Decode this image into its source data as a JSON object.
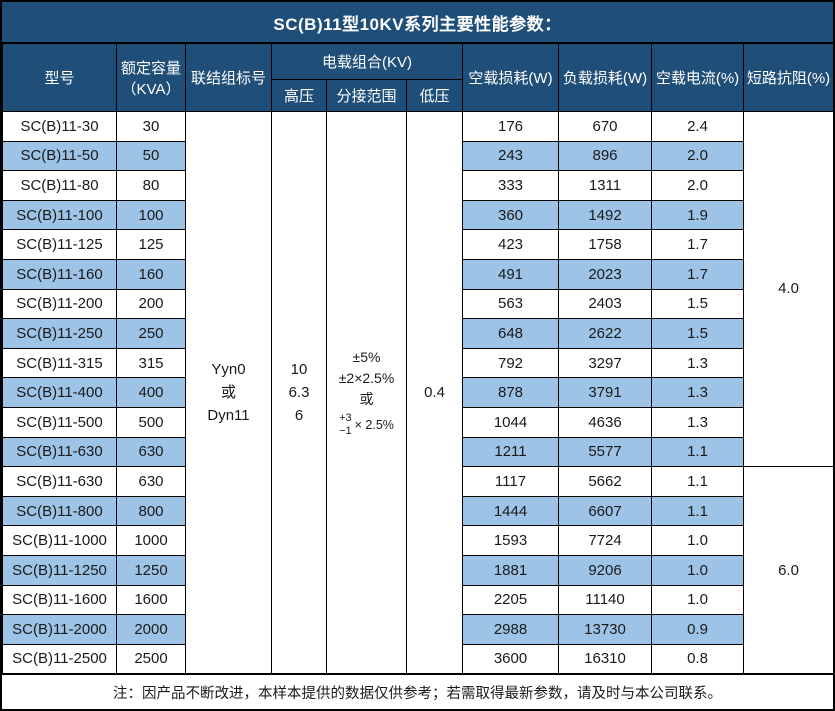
{
  "title": "SC(B)11型10KV系列主要性能参数：",
  "columns": {
    "model": "型号",
    "capacity_l1": "额定容量",
    "capacity_l2": "（KVA）",
    "connection": "联结组标号",
    "voltage_combo": "电载组合(KV)",
    "hv": "高压",
    "tap_range": "分接范围",
    "lv": "低压",
    "no_load_loss": "空载损耗(W)",
    "load_loss": "负载损耗(W)",
    "no_load_current": "空载电流(%)",
    "short_circuit_impedance": "短路抗阻(%)"
  },
  "shared": {
    "connection_l1": "Yyn0",
    "connection_l2": "或",
    "connection_l3": "Dyn11",
    "hv_l1": "10",
    "hv_l2": "6.3",
    "hv_l3": "6",
    "tap_l1": "±5%",
    "tap_l2": "±2×2.5%",
    "tap_l3": "或",
    "tap_frac_top": "+3",
    "tap_frac_bottom": "−1",
    "tap_frac_mult": "× 2.5%",
    "lv_value": "0.4",
    "impedance_group1": "4.0",
    "impedance_group2": "6.0"
  },
  "rows": [
    {
      "model": "SC(B)11-30",
      "capacity": "30",
      "no_load_loss": "176",
      "load_loss": "670",
      "no_load_current": "2.4"
    },
    {
      "model": "SC(B)11-50",
      "capacity": "50",
      "no_load_loss": "243",
      "load_loss": "896",
      "no_load_current": "2.0"
    },
    {
      "model": "SC(B)11-80",
      "capacity": "80",
      "no_load_loss": "333",
      "load_loss": "1311",
      "no_load_current": "2.0"
    },
    {
      "model": "SC(B)11-100",
      "capacity": "100",
      "no_load_loss": "360",
      "load_loss": "1492",
      "no_load_current": "1.9"
    },
    {
      "model": "SC(B)11-125",
      "capacity": "125",
      "no_load_loss": "423",
      "load_loss": "1758",
      "no_load_current": "1.7"
    },
    {
      "model": "SC(B)11-160",
      "capacity": "160",
      "no_load_loss": "491",
      "load_loss": "2023",
      "no_load_current": "1.7"
    },
    {
      "model": "SC(B)11-200",
      "capacity": "200",
      "no_load_loss": "563",
      "load_loss": "2403",
      "no_load_current": "1.5"
    },
    {
      "model": "SC(B)11-250",
      "capacity": "250",
      "no_load_loss": "648",
      "load_loss": "2622",
      "no_load_current": "1.5"
    },
    {
      "model": "SC(B)11-315",
      "capacity": "315",
      "no_load_loss": "792",
      "load_loss": "3297",
      "no_load_current": "1.3"
    },
    {
      "model": "SC(B)11-400",
      "capacity": "400",
      "no_load_loss": "878",
      "load_loss": "3791",
      "no_load_current": "1.3"
    },
    {
      "model": "SC(B)11-500",
      "capacity": "500",
      "no_load_loss": "1044",
      "load_loss": "4636",
      "no_load_current": "1.3"
    },
    {
      "model": "SC(B)11-630",
      "capacity": "630",
      "no_load_loss": "1211",
      "load_loss": "5577",
      "no_load_current": "1.1"
    },
    {
      "model": "SC(B)11-630",
      "capacity": "630",
      "no_load_loss": "1117",
      "load_loss": "5662",
      "no_load_current": "1.1"
    },
    {
      "model": "SC(B)11-800",
      "capacity": "800",
      "no_load_loss": "1444",
      "load_loss": "6607",
      "no_load_current": "1.1"
    },
    {
      "model": "SC(B)11-1000",
      "capacity": "1000",
      "no_load_loss": "1593",
      "load_loss": "7724",
      "no_load_current": "1.0"
    },
    {
      "model": "SC(B)11-1250",
      "capacity": "1250",
      "no_load_loss": "1881",
      "load_loss": "9206",
      "no_load_current": "1.0"
    },
    {
      "model": "SC(B)11-1600",
      "capacity": "1600",
      "no_load_loss": "2205",
      "load_loss": "11140",
      "no_load_current": "1.0"
    },
    {
      "model": "SC(B)11-2000",
      "capacity": "2000",
      "no_load_loss": "2988",
      "load_loss": "13730",
      "no_load_current": "0.9"
    },
    {
      "model": "SC(B)11-2500",
      "capacity": "2500",
      "no_load_loss": "3600",
      "load_loss": "16310",
      "no_load_current": "0.8"
    }
  ],
  "note": "注：因产品不断改进，本样本提供的数据仅供参考；若需取得最新参数，请及时与本公司联系。",
  "colors": {
    "header_bg": "#1F4E79",
    "header_text": "#FFFFFF",
    "stripe_bg": "#9DC3E6",
    "border": "#000000",
    "text": "#1A1A1A"
  }
}
